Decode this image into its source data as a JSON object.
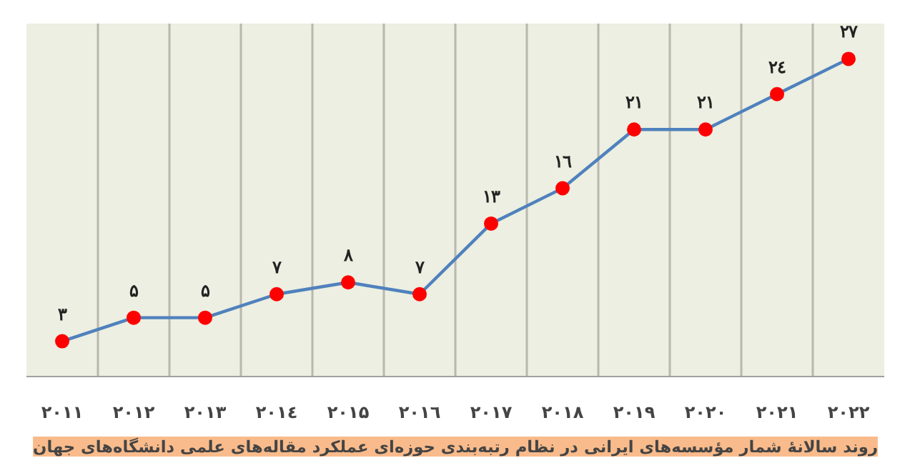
{
  "chart_data": {
    "type": "line",
    "title": "روند سالانهٔ شمار مؤسسه‌های ایرانی در نظام رتبه‌بندی حوزه‌ای عملکرد مقاله‌های علمی دانشگاه‌های جهان",
    "categories": [
      "۲۰۱۱",
      "۲۰۱۲",
      "۲۰۱۳",
      "۲۰۱٤",
      "۲۰۱۵",
      "۲۰۱٦",
      "۲۰۱۷",
      "۲۰۱۸",
      "۲۰۱۹",
      "۲۰۲۰",
      "۲۰۲۱",
      "۲۰۲۲"
    ],
    "series": [
      {
        "color": "#4f81bd",
        "values": [
          3,
          5,
          5,
          7,
          8,
          7,
          13,
          16,
          21,
          21,
          24,
          27
        ],
        "value_labels": [
          "۳",
          "۵",
          "۵",
          "۷",
          "۸",
          "۷",
          "۱۳",
          "۱٦",
          "۲۱",
          "۲۱",
          "۲٤",
          "۲۷"
        ]
      }
    ],
    "ylim": [
      0,
      30
    ],
    "tick_labels": "x",
    "grid": "x",
    "marker": "circle",
    "line_style": "solid"
  }
}
